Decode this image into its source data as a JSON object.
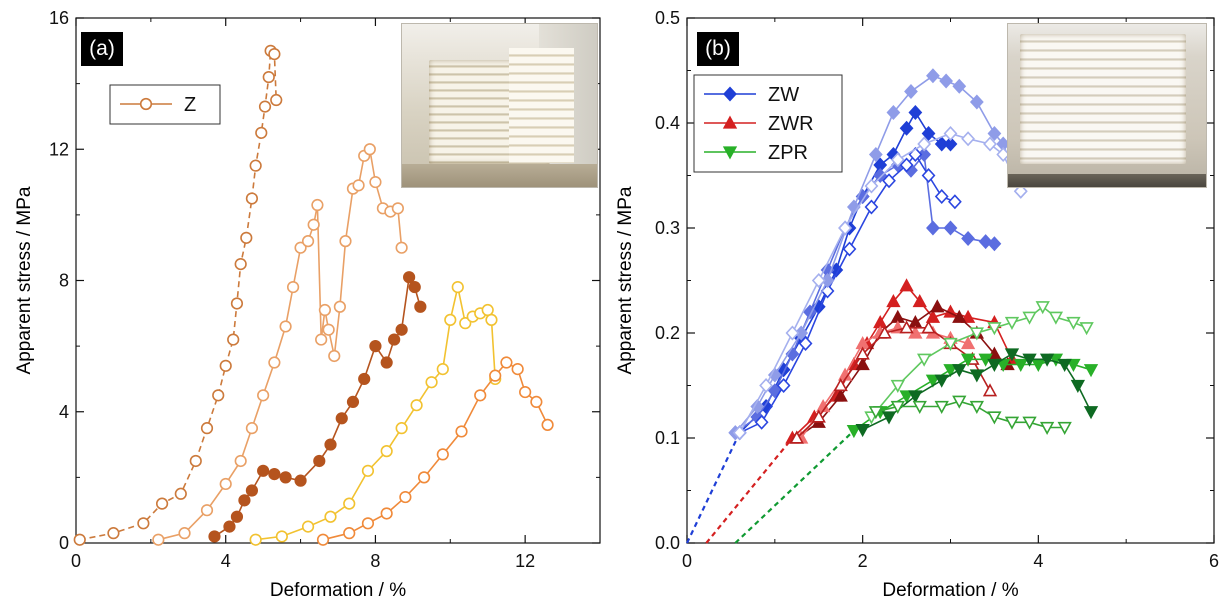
{
  "panels": [
    {
      "tag": "(a)",
      "xlabel": "Deformation / %",
      "ylabel": "Apparent stress / MPa",
      "legend": [
        "Z"
      ],
      "inset": "photo-inset-a"
    },
    {
      "tag": "(b)",
      "xlabel": "Deformation / %",
      "ylabel": "Apparent stress / MPa",
      "legend": [
        "ZW",
        "ZWR",
        "ZPR"
      ],
      "inset": "photo-inset-b"
    }
  ],
  "chart_data": [
    {
      "type": "line",
      "xlabel": "Deformation / %",
      "ylabel": "Apparent stress / MPa",
      "xlim": [
        0,
        14
      ],
      "ylim": [
        0,
        16
      ],
      "xticks": [
        0,
        4,
        8,
        12
      ],
      "yticks": [
        0,
        4,
        8,
        12,
        16
      ],
      "legend": [
        "Z"
      ],
      "legend_position": "top-left",
      "series": [
        {
          "name": "Z",
          "color": "#cc7a3c",
          "marker": "open-circle",
          "dashed": true,
          "x": [
            0.1,
            1.0,
            1.8,
            2.3,
            2.8,
            3.2,
            3.5,
            3.8,
            4.0,
            4.2,
            4.3,
            4.4,
            4.55,
            4.7,
            4.8,
            4.95,
            5.05,
            5.15,
            5.2,
            5.3,
            5.35
          ],
          "y": [
            0.1,
            0.3,
            0.6,
            1.2,
            1.5,
            2.5,
            3.5,
            4.5,
            5.4,
            6.2,
            7.3,
            8.5,
            9.3,
            10.5,
            11.5,
            12.5,
            13.3,
            14.2,
            15.0,
            14.9,
            13.5
          ]
        },
        {
          "color": "#e9a066",
          "marker": "open-circle",
          "dashed": false,
          "x": [
            2.2,
            2.9,
            3.5,
            4.0,
            4.4,
            4.7,
            5.0,
            5.3,
            5.6,
            5.8,
            6.0,
            6.2,
            6.35,
            6.45,
            6.55,
            6.65,
            6.75,
            6.9,
            7.05,
            7.2,
            7.4,
            7.55,
            7.7,
            7.85,
            8.0,
            8.2,
            8.4,
            8.6,
            8.7
          ],
          "y": [
            0.1,
            0.3,
            1.0,
            1.8,
            2.5,
            3.5,
            4.5,
            5.5,
            6.6,
            7.8,
            9.0,
            9.2,
            9.7,
            10.3,
            6.2,
            7.1,
            6.5,
            5.7,
            7.2,
            9.2,
            10.8,
            10.9,
            11.8,
            12.0,
            11.0,
            10.2,
            10.1,
            10.2,
            9.0
          ]
        },
        {
          "color": "#b5541e",
          "marker": "filled-circle",
          "dashed": false,
          "x": [
            3.7,
            4.1,
            4.3,
            4.5,
            4.7,
            5.0,
            5.3,
            5.6,
            6.0,
            6.5,
            6.8,
            7.1,
            7.4,
            7.7,
            8.0,
            8.3,
            8.5,
            8.7,
            8.9,
            9.05,
            9.2
          ],
          "y": [
            0.2,
            0.5,
            0.8,
            1.3,
            1.6,
            2.2,
            2.1,
            2.0,
            1.9,
            2.5,
            3.0,
            3.8,
            4.3,
            5.0,
            6.0,
            5.5,
            6.2,
            6.5,
            8.1,
            7.8,
            7.2
          ]
        },
        {
          "color": "#f2c230",
          "marker": "open-circle",
          "dashed": false,
          "x": [
            4.8,
            5.5,
            6.2,
            6.8,
            7.3,
            7.8,
            8.3,
            8.7,
            9.1,
            9.5,
            9.8,
            10.0,
            10.2,
            10.4,
            10.6,
            10.8,
            11.0,
            11.1,
            11.2
          ],
          "y": [
            0.1,
            0.2,
            0.5,
            0.8,
            1.2,
            2.2,
            2.8,
            3.5,
            4.2,
            4.9,
            5.3,
            6.8,
            7.8,
            6.7,
            6.9,
            7.0,
            7.1,
            6.8,
            5.0
          ]
        },
        {
          "color": "#f08a3a",
          "marker": "open-circle",
          "dashed": false,
          "x": [
            6.6,
            7.3,
            7.8,
            8.3,
            8.8,
            9.3,
            9.8,
            10.3,
            10.8,
            11.2,
            11.5,
            11.8,
            12.0,
            12.3,
            12.6
          ],
          "y": [
            0.1,
            0.3,
            0.6,
            0.9,
            1.4,
            2.0,
            2.7,
            3.4,
            4.5,
            5.1,
            5.5,
            5.3,
            4.6,
            4.3,
            3.6
          ]
        }
      ]
    },
    {
      "type": "line",
      "xlabel": "Deformation / %",
      "ylabel": "Apparent stress / MPa",
      "xlim": [
        0,
        6
      ],
      "ylim": [
        0,
        0.5
      ],
      "xticks": [
        0,
        2,
        4,
        6
      ],
      "yticks": [
        0,
        0.1,
        0.2,
        0.3,
        0.4,
        0.5
      ],
      "legend": [
        "ZW",
        "ZWR",
        "ZPR"
      ],
      "legend_position": "top-left",
      "series": [
        {
          "name": "ZW",
          "color": "#1f3fd6",
          "marker": "filled-diamond",
          "x": [
            0.6,
            0.9,
            1.1,
            1.3,
            1.5,
            1.7,
            1.85,
            2.0,
            2.2,
            2.35,
            2.5,
            2.6,
            2.75,
            2.9,
            3.0
          ],
          "y": [
            0.105,
            0.13,
            0.165,
            0.195,
            0.225,
            0.26,
            0.3,
            0.33,
            0.36,
            0.37,
            0.395,
            0.41,
            0.39,
            0.38,
            0.38
          ]
        },
        {
          "color": "#5b6de0",
          "marker": "filled-diamond",
          "x": [
            0.55,
            0.8,
            1.0,
            1.2,
            1.4,
            1.6,
            1.8,
            2.0,
            2.2,
            2.4,
            2.55,
            2.7,
            2.8,
            3.0,
            3.2,
            3.4,
            3.5
          ],
          "y": [
            0.105,
            0.12,
            0.145,
            0.18,
            0.22,
            0.26,
            0.3,
            0.33,
            0.35,
            0.36,
            0.355,
            0.37,
            0.3,
            0.3,
            0.29,
            0.287,
            0.285
          ]
        },
        {
          "color": "#2b46e0",
          "marker": "open-diamond",
          "x": [
            0.6,
            0.85,
            1.1,
            1.35,
            1.6,
            1.85,
            2.1,
            2.3,
            2.5,
            2.6,
            2.75,
            2.9,
            3.05
          ],
          "y": [
            0.105,
            0.115,
            0.15,
            0.19,
            0.24,
            0.28,
            0.32,
            0.345,
            0.36,
            0.37,
            0.35,
            0.33,
            0.325
          ]
        },
        {
          "color": "#8f9ce8",
          "marker": "filled-diamond",
          "x": [
            0.55,
            0.8,
            1.0,
            1.3,
            1.6,
            1.9,
            2.15,
            2.35,
            2.55,
            2.8,
            2.95,
            3.1,
            3.3,
            3.5,
            3.6,
            3.8
          ],
          "y": [
            0.105,
            0.13,
            0.16,
            0.2,
            0.25,
            0.32,
            0.37,
            0.41,
            0.43,
            0.445,
            0.44,
            0.435,
            0.42,
            0.39,
            0.38,
            0.335
          ]
        },
        {
          "color": "#a5b0ee",
          "marker": "open-diamond",
          "x": [
            0.6,
            0.9,
            1.2,
            1.5,
            1.8,
            2.1,
            2.4,
            2.7,
            3.0,
            3.2,
            3.45,
            3.6,
            3.8
          ],
          "y": [
            0.105,
            0.15,
            0.2,
            0.25,
            0.3,
            0.34,
            0.365,
            0.38,
            0.39,
            0.385,
            0.38,
            0.37,
            0.335
          ]
        },
        {
          "name": "ZWR",
          "color": "#d42020",
          "marker": "filled-triangle-up",
          "x": [
            1.2,
            1.45,
            1.7,
            1.9,
            2.05,
            2.2,
            2.35,
            2.5,
            2.65,
            2.8,
            3.0,
            3.2,
            3.5,
            3.7
          ],
          "y": [
            0.1,
            0.12,
            0.14,
            0.17,
            0.19,
            0.21,
            0.23,
            0.245,
            0.23,
            0.215,
            0.22,
            0.215,
            0.21,
            0.175
          ]
        },
        {
          "color": "#8a1010",
          "marker": "filled-triangle-up",
          "x": [
            1.25,
            1.5,
            1.75,
            2.0,
            2.2,
            2.4,
            2.6,
            2.85,
            3.1,
            3.3,
            3.5,
            3.65
          ],
          "y": [
            0.1,
            0.115,
            0.14,
            0.17,
            0.2,
            0.215,
            0.21,
            0.225,
            0.215,
            0.2,
            0.18,
            0.17
          ]
        },
        {
          "color": "#f07070",
          "marker": "filled-triangle-up",
          "x": [
            1.3,
            1.55,
            1.8,
            2.0,
            2.2,
            2.4,
            2.6,
            2.8,
            3.0,
            3.2
          ],
          "y": [
            0.1,
            0.13,
            0.16,
            0.19,
            0.2,
            0.205,
            0.2,
            0.2,
            0.195,
            0.19
          ]
        },
        {
          "color": "#b82020",
          "marker": "open-triangle-up",
          "x": [
            1.25,
            1.5,
            1.75,
            2.0,
            2.25,
            2.5,
            2.75,
            3.0,
            3.25,
            3.45
          ],
          "y": [
            0.1,
            0.12,
            0.15,
            0.18,
            0.2,
            0.205,
            0.205,
            0.19,
            0.175,
            0.145
          ]
        },
        {
          "name": "ZPR",
          "color": "#28b028",
          "marker": "filled-triangle-down",
          "x": [
            1.9,
            2.2,
            2.5,
            2.8,
            3.0,
            3.2,
            3.4,
            3.6,
            3.8,
            4.0,
            4.2,
            4.4,
            4.6
          ],
          "y": [
            0.107,
            0.125,
            0.14,
            0.155,
            0.165,
            0.175,
            0.175,
            0.17,
            0.17,
            0.17,
            0.175,
            0.17,
            0.165
          ]
        },
        {
          "color": "#0e6a22",
          "marker": "filled-triangle-down",
          "x": [
            2.0,
            2.3,
            2.6,
            2.9,
            3.1,
            3.3,
            3.5,
            3.7,
            3.9,
            4.1,
            4.3,
            4.45,
            4.6
          ],
          "y": [
            0.108,
            0.12,
            0.14,
            0.155,
            0.165,
            0.16,
            0.17,
            0.18,
            0.175,
            0.175,
            0.17,
            0.15,
            0.125
          ]
        },
        {
          "color": "#5fc85f",
          "marker": "open-triangle-down",
          "x": [
            2.1,
            2.4,
            2.7,
            3.0,
            3.3,
            3.5,
            3.7,
            3.9,
            4.05,
            4.2,
            4.4,
            4.55
          ],
          "y": [
            0.12,
            0.15,
            0.175,
            0.19,
            0.2,
            0.205,
            0.21,
            0.215,
            0.225,
            0.215,
            0.21,
            0.205
          ]
        },
        {
          "color": "#35a535",
          "marker": "open-triangle-down",
          "x": [
            2.15,
            2.4,
            2.65,
            2.9,
            3.1,
            3.3,
            3.5,
            3.7,
            3.9,
            4.1,
            4.3
          ],
          "y": [
            0.125,
            0.13,
            0.13,
            0.13,
            0.135,
            0.13,
            0.12,
            0.115,
            0.115,
            0.11,
            0.11
          ]
        }
      ],
      "extrapolations": [
        {
          "color": "#1f3fd6",
          "x": [
            0.0,
            0.6
          ],
          "y": [
            0.0,
            0.105
          ]
        },
        {
          "color": "#d42020",
          "x": [
            0.22,
            1.2
          ],
          "y": [
            0.0,
            0.1
          ]
        },
        {
          "color": "#109a32",
          "x": [
            0.55,
            1.9
          ],
          "y": [
            0.0,
            0.107
          ]
        }
      ]
    }
  ]
}
